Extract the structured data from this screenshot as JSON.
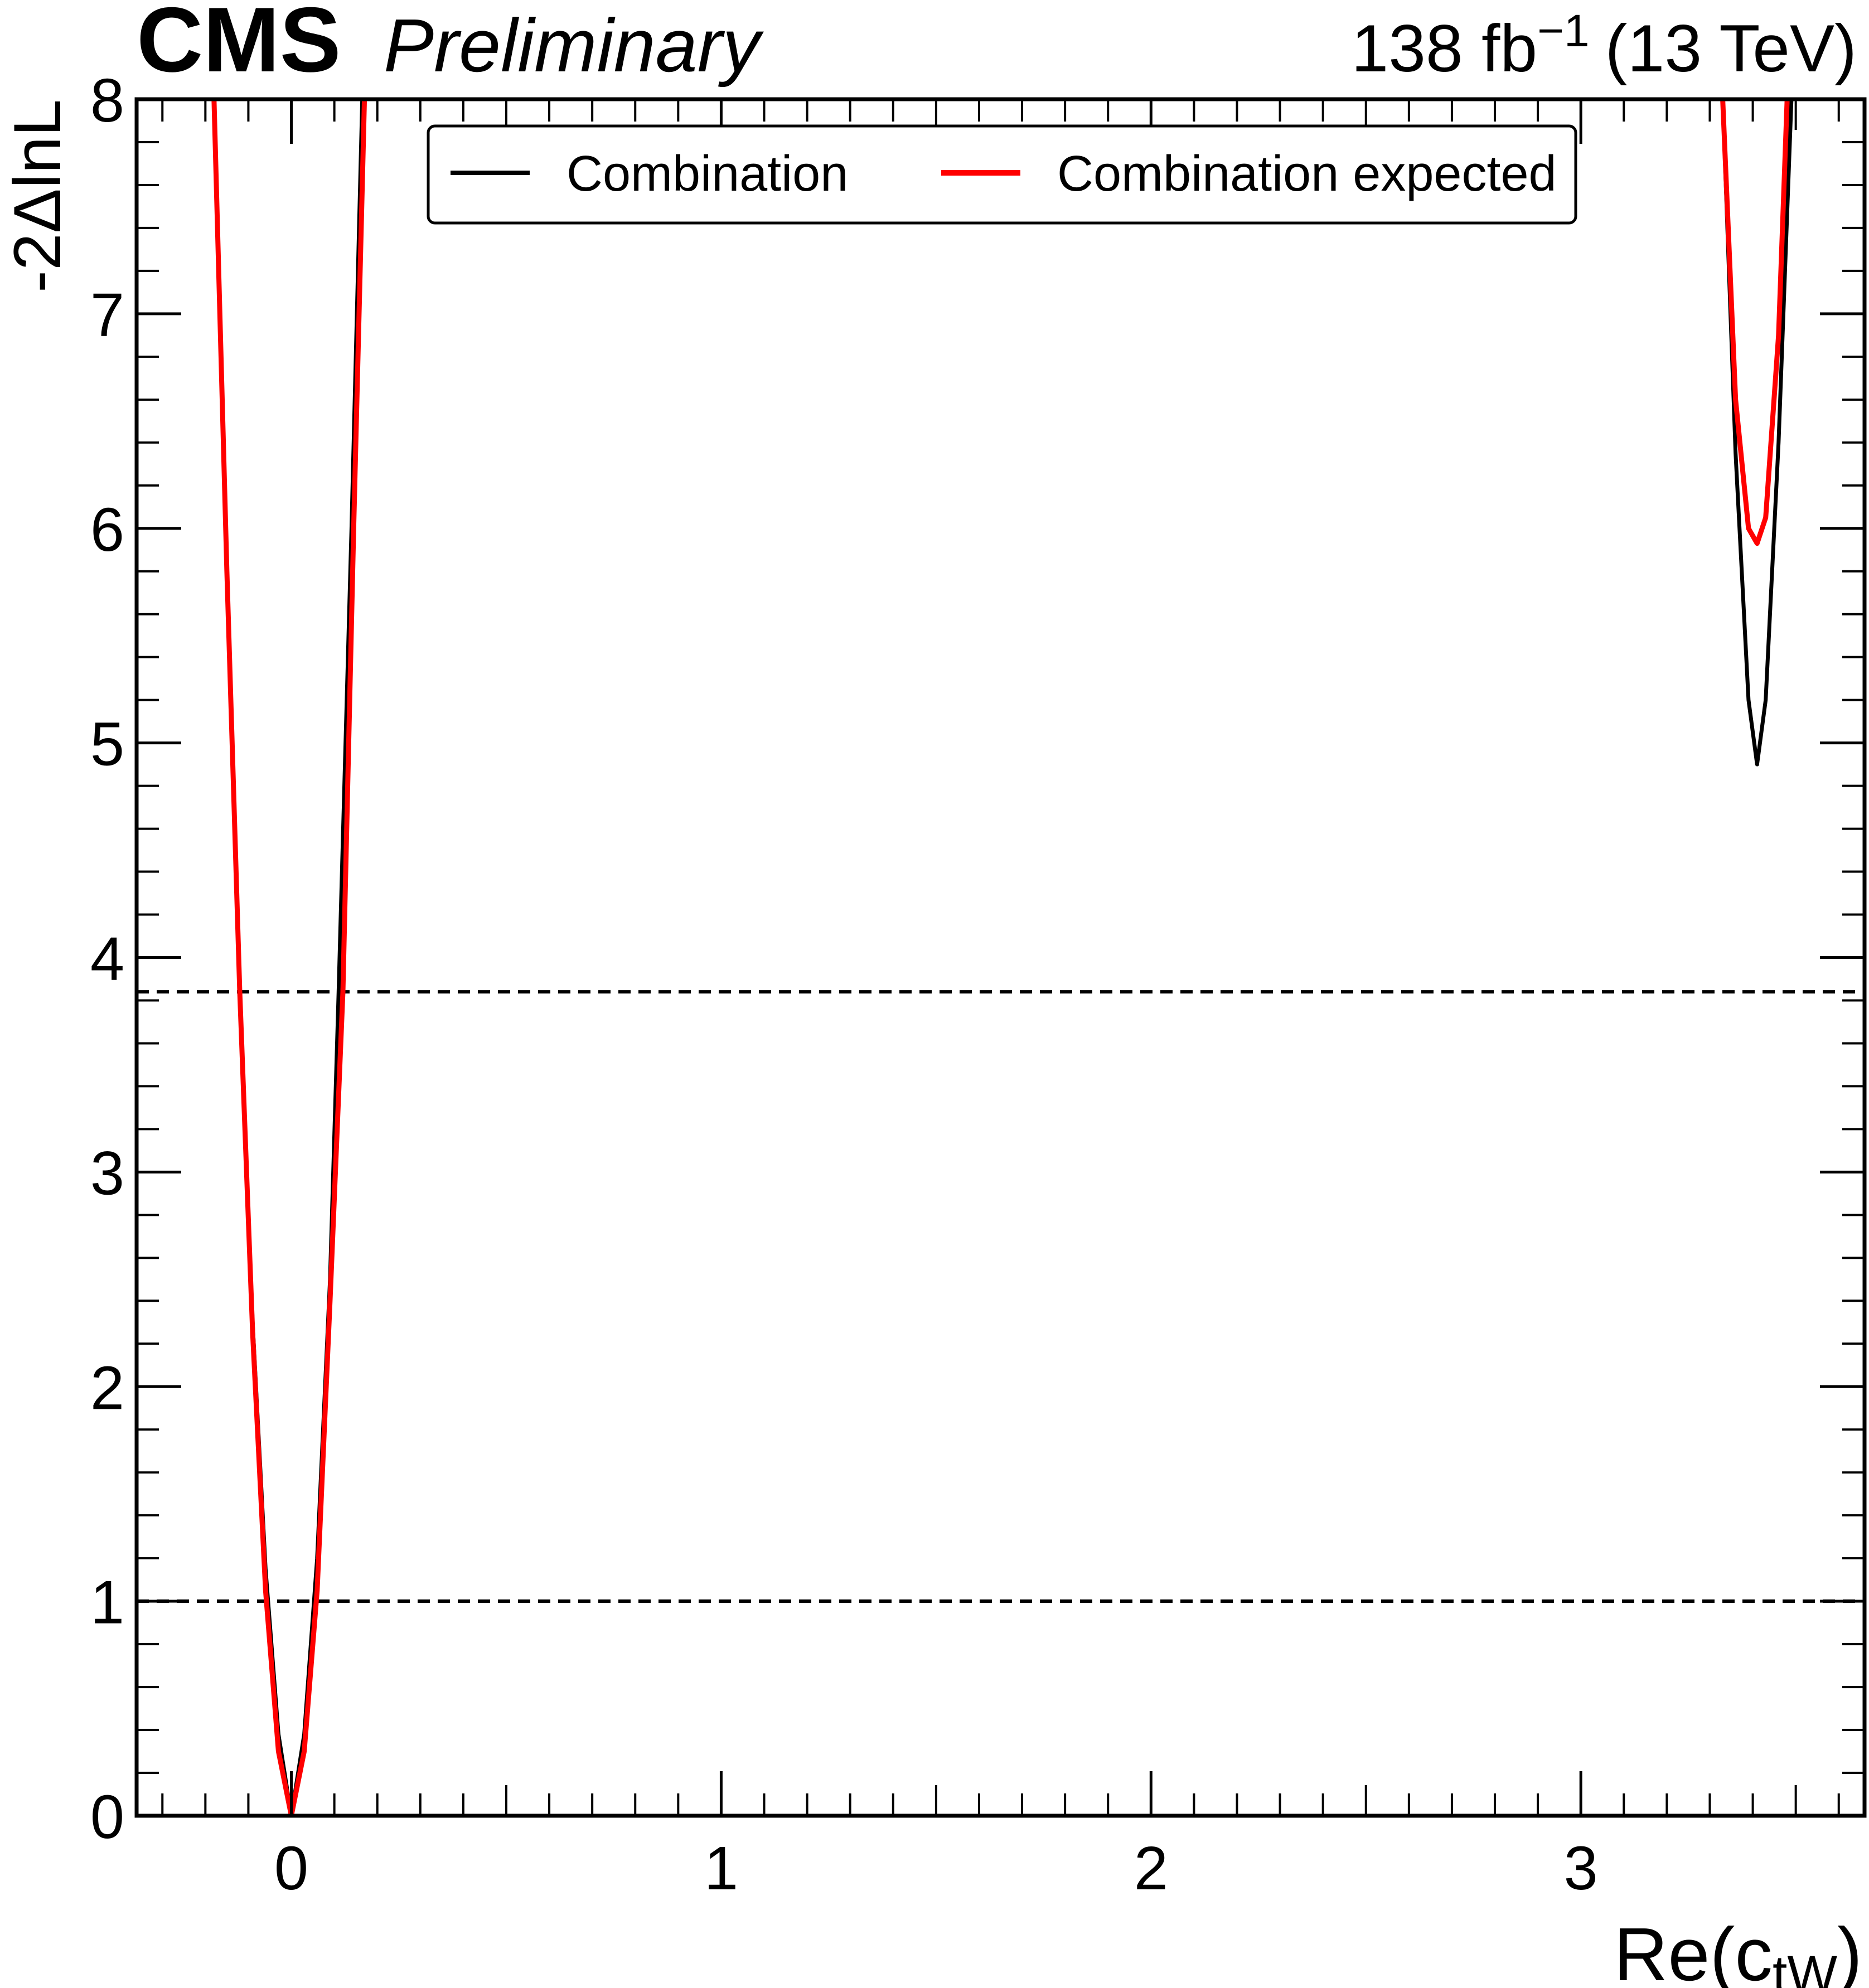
{
  "header": {
    "experiment": "CMS",
    "status": "Preliminary",
    "lumi_value": "138 fb",
    "lumi_exponent": "−1",
    "energy": "(13 TeV)"
  },
  "axes": {
    "x_label_main": "Re(c",
    "x_label_sub": "tW",
    "x_label_close": ")",
    "y_label": "-2ΔlnL"
  },
  "legend": {
    "position": "top-center",
    "entries": [
      {
        "label": "Combination",
        "color": "#000000"
      },
      {
        "label": "Combination expected",
        "color": "#ff0000"
      }
    ]
  },
  "chart_data": {
    "type": "line",
    "title": "",
    "xlabel": "Re(c_tW)",
    "ylabel": "-2ΔlnL",
    "xlim": [
      -0.36,
      3.66
    ],
    "ylim": [
      0,
      8
    ],
    "x_ticks": [
      "0",
      "1",
      "2",
      "3"
    ],
    "y_ticks": [
      "0",
      "1",
      "2",
      "3",
      "4",
      "5",
      "6",
      "7",
      "8"
    ],
    "grid": false,
    "series": [
      {
        "name": "Combination",
        "color": "#000000",
        "points": [
          [
            -0.18,
            8.0
          ],
          [
            -0.15,
            5.8
          ],
          [
            -0.12,
            3.84
          ],
          [
            -0.09,
            2.3
          ],
          [
            -0.06,
            1.15
          ],
          [
            -0.03,
            0.38
          ],
          [
            0.0,
            0.0
          ],
          [
            0.03,
            0.38
          ],
          [
            0.06,
            1.2
          ],
          [
            0.09,
            2.5
          ],
          [
            0.11,
            3.84
          ],
          [
            0.14,
            6.0
          ],
          [
            0.165,
            8.0
          ],
          null,
          [
            3.33,
            8.0
          ],
          [
            3.36,
            6.35
          ],
          [
            3.39,
            5.2
          ],
          [
            3.41,
            4.9
          ],
          [
            3.43,
            5.2
          ],
          [
            3.46,
            6.4
          ],
          [
            3.49,
            8.0
          ]
        ]
      },
      {
        "name": "Combination expected",
        "color": "#ff0000",
        "points": [
          [
            -0.18,
            8.0
          ],
          [
            -0.15,
            5.8
          ],
          [
            -0.12,
            3.84
          ],
          [
            -0.09,
            2.25
          ],
          [
            -0.06,
            1.05
          ],
          [
            -0.03,
            0.3
          ],
          [
            0.0,
            0.0
          ],
          [
            0.03,
            0.3
          ],
          [
            0.06,
            1.05
          ],
          [
            0.09,
            2.4
          ],
          [
            0.12,
            3.84
          ],
          [
            0.145,
            6.0
          ],
          [
            0.17,
            8.0
          ],
          null,
          [
            3.33,
            8.0
          ],
          [
            3.36,
            6.6
          ],
          [
            3.39,
            6.0
          ],
          [
            3.41,
            5.93
          ],
          [
            3.43,
            6.05
          ],
          [
            3.46,
            6.9
          ],
          [
            3.48,
            8.0
          ]
        ]
      }
    ],
    "reference_lines": [
      {
        "y": 1.0,
        "style": "dashed",
        "color": "#000000"
      },
      {
        "y": 3.84,
        "style": "dashed",
        "color": "#000000"
      }
    ]
  }
}
